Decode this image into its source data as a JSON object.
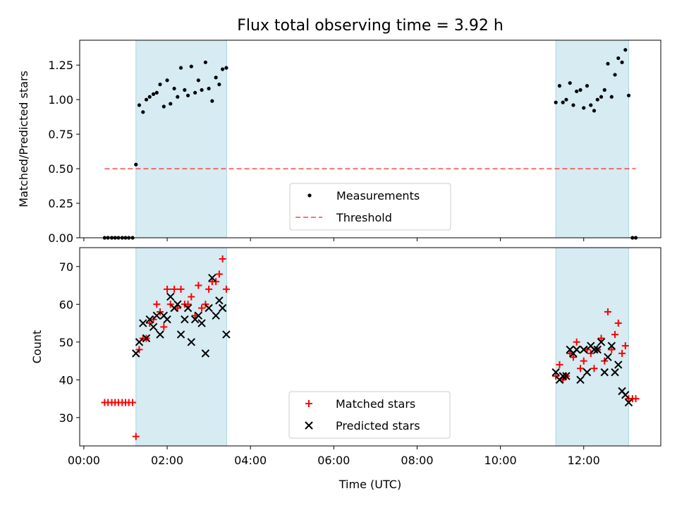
{
  "figure": {
    "title": "Flux total observing time = 3.92 h"
  },
  "colors": {
    "band": "#add8e6",
    "measurement": "#000000",
    "threshold": "#ff0000",
    "matched": "#ff0000",
    "predicted": "#000000"
  },
  "chart_data": [
    {
      "type": "scatter",
      "title": "Flux total observing time = 3.92 h",
      "xlabel": "",
      "ylabel": "Matched/Predicted stars",
      "x_unit": "hours UTC",
      "xlim": [
        -0.1,
        13.85
      ],
      "ylim": [
        0.0,
        1.43
      ],
      "yticks": [
        "0.00",
        "0.25",
        "0.50",
        "0.75",
        "1.00",
        "1.25"
      ],
      "ytick_values": [
        0.0,
        0.25,
        0.5,
        0.75,
        1.0,
        1.25
      ],
      "grid": false,
      "legend_position": "bottom-center",
      "bands": [
        [
          1.25,
          3.43
        ],
        [
          11.33,
          13.08
        ]
      ],
      "threshold": {
        "name": "Threshold",
        "y": 0.5,
        "x": [
          0.5,
          13.25
        ]
      },
      "series": [
        {
          "name": "Measurements",
          "x": [
            0.5,
            0.58,
            0.67,
            0.75,
            0.83,
            0.92,
            1.0,
            1.08,
            1.17,
            1.25,
            1.33,
            1.42,
            1.5,
            1.58,
            1.67,
            1.75,
            1.83,
            1.92,
            2.0,
            2.08,
            2.17,
            2.25,
            2.33,
            2.42,
            2.5,
            2.58,
            2.67,
            2.75,
            2.83,
            2.92,
            3.0,
            3.08,
            3.17,
            3.25,
            3.33,
            3.42,
            11.33,
            11.42,
            11.5,
            11.58,
            11.67,
            11.75,
            11.83,
            11.92,
            12.0,
            12.08,
            12.17,
            12.25,
            12.33,
            12.42,
            12.5,
            12.58,
            12.67,
            12.75,
            12.83,
            12.92,
            13.0,
            13.08,
            13.17,
            13.25
          ],
          "y": [
            0,
            0,
            0,
            0,
            0,
            0,
            0,
            0,
            0,
            0.53,
            0.96,
            0.91,
            1.0,
            1.02,
            1.04,
            1.05,
            1.11,
            0.95,
            1.14,
            0.97,
            1.08,
            1.02,
            1.23,
            1.07,
            1.03,
            1.24,
            1.05,
            1.14,
            1.07,
            1.27,
            1.08,
            0.99,
            1.16,
            1.11,
            1.22,
            1.23,
            0.98,
            1.1,
            0.98,
            1.0,
            1.12,
            0.96,
            1.06,
            1.07,
            0.94,
            1.1,
            0.96,
            0.92,
            1.0,
            1.02,
            1.07,
            1.26,
            1.02,
            1.18,
            1.3,
            1.27,
            1.36,
            1.03,
            0,
            0
          ]
        }
      ]
    },
    {
      "type": "scatter",
      "title": "",
      "xlabel": "Time (UTC)",
      "ylabel": "Count",
      "x_unit": "hours UTC",
      "xlim": [
        -0.1,
        13.85
      ],
      "ylim": [
        22.5,
        75.0
      ],
      "xticks": [
        "00:00",
        "02:00",
        "04:00",
        "06:00",
        "08:00",
        "10:00",
        "12:00"
      ],
      "xtick_values": [
        0,
        2,
        4,
        6,
        8,
        10,
        12
      ],
      "yticks": [
        "30",
        "40",
        "50",
        "60",
        "70"
      ],
      "ytick_values": [
        30,
        40,
        50,
        60,
        70
      ],
      "grid": false,
      "legend_position": "bottom-center",
      "bands": [
        [
          1.25,
          3.43
        ],
        [
          11.33,
          13.08
        ]
      ],
      "series": [
        {
          "name": "Matched stars",
          "marker": "plus",
          "x": [
            0.5,
            0.58,
            0.67,
            0.75,
            0.83,
            0.92,
            1.0,
            1.08,
            1.17,
            1.25,
            1.33,
            1.42,
            1.5,
            1.58,
            1.67,
            1.75,
            1.83,
            1.92,
            2.0,
            2.08,
            2.17,
            2.25,
            2.33,
            2.42,
            2.5,
            2.58,
            2.67,
            2.75,
            2.83,
            2.92,
            3.0,
            3.08,
            3.17,
            3.25,
            3.33,
            3.42,
            11.33,
            11.42,
            11.5,
            11.58,
            11.67,
            11.75,
            11.83,
            11.92,
            12.0,
            12.08,
            12.17,
            12.25,
            12.33,
            12.42,
            12.5,
            12.58,
            12.67,
            12.75,
            12.83,
            12.92,
            13.0,
            13.08,
            13.17,
            13.25
          ],
          "y": [
            34,
            34,
            34,
            34,
            34,
            34,
            34,
            34,
            34,
            25,
            48,
            51,
            51,
            55,
            56,
            60,
            58,
            54,
            64,
            60,
            64,
            59,
            64,
            60,
            60,
            62,
            57,
            65,
            59,
            60,
            64,
            66,
            66,
            68,
            72,
            64,
            41,
            44,
            40,
            41,
            47,
            46,
            50,
            43,
            45,
            48,
            47,
            43,
            48,
            51,
            45,
            58,
            48,
            52,
            55,
            47,
            49,
            35,
            35,
            35
          ]
        },
        {
          "name": "Predicted stars",
          "marker": "cross",
          "x": [
            1.25,
            1.33,
            1.42,
            1.5,
            1.58,
            1.67,
            1.75,
            1.83,
            1.92,
            2.0,
            2.08,
            2.17,
            2.25,
            2.33,
            2.42,
            2.5,
            2.58,
            2.67,
            2.75,
            2.83,
            2.92,
            3.0,
            3.08,
            3.17,
            3.25,
            3.33,
            3.42,
            11.33,
            11.42,
            11.5,
            11.58,
            11.67,
            11.75,
            11.83,
            11.92,
            12.0,
            12.08,
            12.17,
            12.25,
            12.33,
            12.42,
            12.5,
            12.58,
            12.67,
            12.75,
            12.83,
            12.92,
            13.0,
            13.08
          ],
          "y": [
            47,
            50,
            55,
            51,
            56,
            54,
            57,
            52,
            57,
            56,
            62,
            59,
            60,
            52,
            56,
            59,
            50,
            56,
            57,
            55,
            47,
            59,
            67,
            57,
            61,
            59,
            52,
            42,
            40,
            41,
            41,
            48,
            47,
            48,
            40,
            48,
            42,
            49,
            48,
            48,
            50,
            42,
            46,
            49,
            42,
            44,
            37,
            36,
            34
          ]
        }
      ]
    }
  ]
}
